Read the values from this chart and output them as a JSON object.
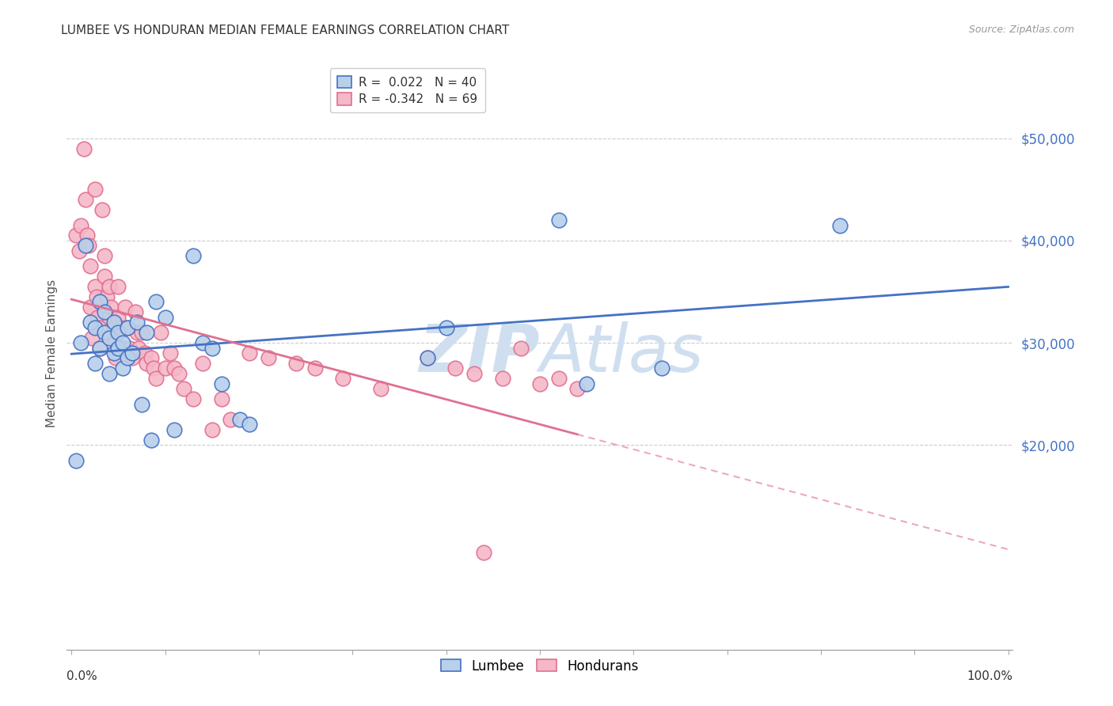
{
  "title": "LUMBEE VS HONDURAN MEDIAN FEMALE EARNINGS CORRELATION CHART",
  "source": "Source: ZipAtlas.com",
  "ylabel": "Median Female Earnings",
  "ytick_labels": [
    "$20,000",
    "$30,000",
    "$40,000",
    "$50,000"
  ],
  "ytick_values": [
    20000,
    30000,
    40000,
    50000
  ],
  "ylim": [
    0,
    58000
  ],
  "xlim": [
    -0.005,
    1.005
  ],
  "legend_lumbee_r": "0.022",
  "legend_lumbee_n": "40",
  "legend_hondurans_r": "-0.342",
  "legend_hondurans_n": "69",
  "lumbee_fill_color": "#b8d0ea",
  "honduran_fill_color": "#f5b8c8",
  "lumbee_edge_color": "#4472c4",
  "honduran_edge_color": "#e07090",
  "lumbee_line_color": "#4472c4",
  "honduran_line_color": "#e07090",
  "background_color": "#ffffff",
  "grid_color": "#cccccc",
  "watermark_color": "#d0dff0",
  "lumbee_scatter_x": [
    0.005,
    0.01,
    0.015,
    0.02,
    0.025,
    0.025,
    0.03,
    0.03,
    0.035,
    0.035,
    0.04,
    0.04,
    0.045,
    0.045,
    0.05,
    0.05,
    0.055,
    0.055,
    0.06,
    0.06,
    0.065,
    0.07,
    0.075,
    0.08,
    0.085,
    0.09,
    0.1,
    0.11,
    0.13,
    0.14,
    0.15,
    0.16,
    0.18,
    0.19,
    0.38,
    0.4,
    0.52,
    0.55,
    0.63,
    0.82
  ],
  "lumbee_scatter_y": [
    18500,
    30000,
    39500,
    32000,
    28000,
    31500,
    34000,
    29500,
    33000,
    31000,
    27000,
    30500,
    32000,
    29000,
    31000,
    29500,
    27500,
    30000,
    28500,
    31500,
    29000,
    32000,
    24000,
    31000,
    20500,
    34000,
    32500,
    21500,
    38500,
    30000,
    29500,
    26000,
    22500,
    22000,
    28500,
    31500,
    42000,
    26000,
    27500,
    41500
  ],
  "honduran_scatter_x": [
    0.005,
    0.008,
    0.01,
    0.013,
    0.015,
    0.017,
    0.018,
    0.02,
    0.02,
    0.022,
    0.025,
    0.025,
    0.027,
    0.028,
    0.03,
    0.03,
    0.033,
    0.035,
    0.035,
    0.038,
    0.04,
    0.04,
    0.042,
    0.045,
    0.045,
    0.047,
    0.05,
    0.05,
    0.052,
    0.055,
    0.057,
    0.06,
    0.062,
    0.065,
    0.068,
    0.07,
    0.072,
    0.075,
    0.078,
    0.08,
    0.085,
    0.088,
    0.09,
    0.095,
    0.1,
    0.105,
    0.11,
    0.115,
    0.12,
    0.13,
    0.14,
    0.15,
    0.16,
    0.17,
    0.19,
    0.21,
    0.24,
    0.26,
    0.29,
    0.33,
    0.38,
    0.41,
    0.43,
    0.44,
    0.46,
    0.48,
    0.5,
    0.52,
    0.54
  ],
  "honduran_scatter_y": [
    40500,
    39000,
    41500,
    49000,
    44000,
    40500,
    39500,
    37500,
    33500,
    30500,
    45000,
    35500,
    34500,
    32500,
    31500,
    29500,
    43000,
    38500,
    36500,
    34500,
    32500,
    35500,
    33500,
    30500,
    31500,
    28500,
    35500,
    32500,
    31500,
    29500,
    33500,
    31500,
    29500,
    28500,
    33000,
    31000,
    29500,
    31000,
    29000,
    28000,
    28500,
    27500,
    26500,
    31000,
    27500,
    29000,
    27500,
    27000,
    25500,
    24500,
    28000,
    21500,
    24500,
    22500,
    29000,
    28500,
    28000,
    27500,
    26500,
    25500,
    28500,
    27500,
    27000,
    9500,
    26500,
    29500,
    26000,
    26500,
    25500
  ]
}
